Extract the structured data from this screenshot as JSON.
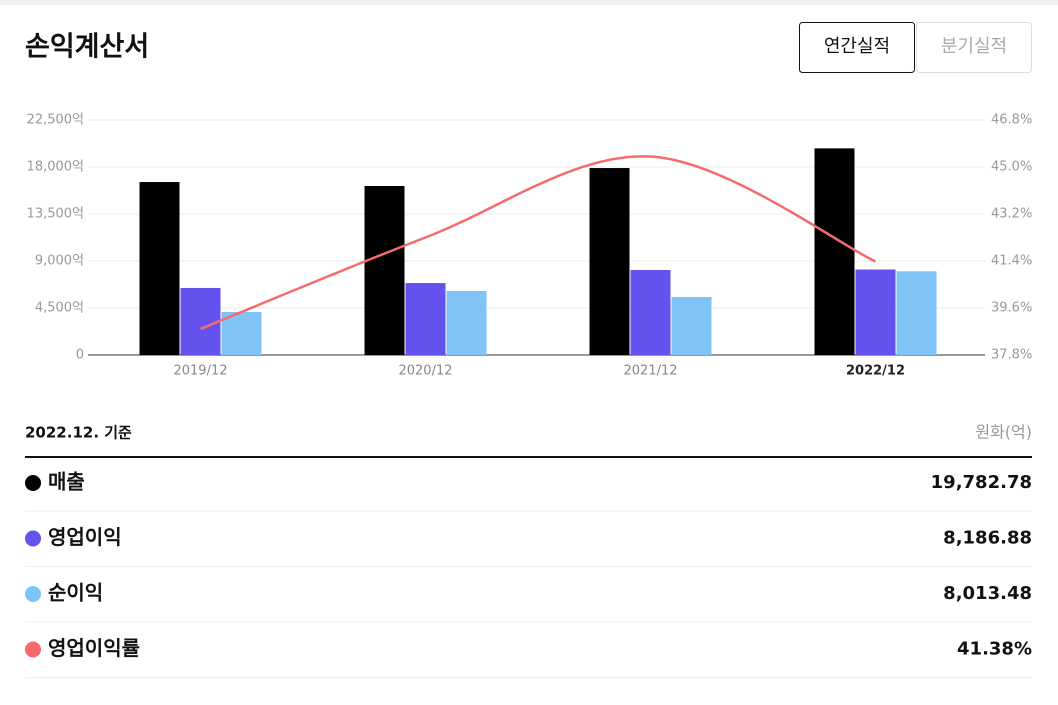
{
  "header": {
    "title": "손익계산서",
    "tabs": [
      "연간실적",
      "분기실적"
    ]
  },
  "chart_data": {
    "type": "bar",
    "categories": [
      "2019/12",
      "2020/12",
      "2021/12",
      "2022/12"
    ],
    "series": [
      {
        "name": "매출",
        "color": "#000000",
        "values": [
          16560,
          16180,
          17900,
          19782.78
        ],
        "value_labels": [
          null,
          null,
          null,
          "19,782.78"
        ]
      },
      {
        "name": "영업이익",
        "color": "#6452ef",
        "values": [
          6420,
          6890,
          8140,
          8186.88
        ],
        "value_labels": [
          null,
          null,
          null,
          "8,186.88"
        ]
      },
      {
        "name": "순이익",
        "color": "#80c4f7",
        "values": [
          4120,
          6130,
          5550,
          8013.48
        ],
        "value_labels": [
          null,
          null,
          null,
          "8,013.48"
        ]
      },
      {
        "name": "영업이익률",
        "color": "#f56b6b",
        "type": "line",
        "axis": "y2",
        "values": [
          38.8,
          42.3,
          45.4,
          41.38
        ],
        "value_labels": [
          null,
          null,
          null,
          "41.38%"
        ]
      }
    ],
    "ylim": [
      0,
      22500
    ],
    "yticks": [
      0,
      {
        "value": 4500,
        "label": "4,500억"
      },
      {
        "value": 9000,
        "label": "9,000억"
      },
      {
        "value": 13500,
        "label": "13,500억"
      },
      {
        "value": 18000,
        "label": "18,000억"
      },
      {
        "value": 22500,
        "label": "22,500억"
      }
    ],
    "y2lim": [
      37.8,
      46.8
    ],
    "y2ticks": [
      {
        "value": 37.8,
        "label": "37.8%"
      },
      {
        "value": 39.6,
        "label": "39.6%"
      },
      {
        "value": 41.4,
        "label": "41.4%"
      },
      {
        "value": 43.2,
        "label": "43.2%"
      },
      {
        "value": 45.0,
        "label": "45.0%"
      },
      {
        "value": 46.8,
        "label": "46.8%"
      }
    ],
    "grid": true
  },
  "table": {
    "basis": "2022.12. 기준",
    "unit": "원화(억)"
  }
}
